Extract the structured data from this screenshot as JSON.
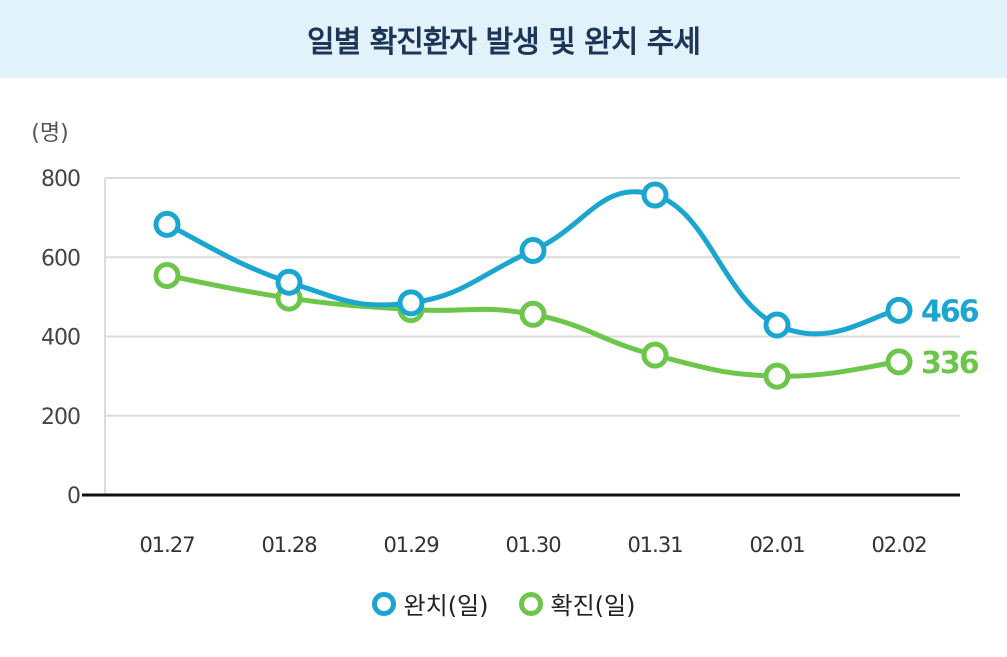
{
  "title": "일별 확진환자 발생 및 완치 추세",
  "colors": {
    "recovered": "#1ba6d1",
    "confirmed": "#6cc64a"
  },
  "chart_data": {
    "type": "line",
    "ylabel": "(명)",
    "ylim": [
      0,
      800
    ],
    "yticks": [
      0,
      200,
      400,
      600,
      800
    ],
    "categories": [
      "01.27",
      "01.28",
      "01.29",
      "01.30",
      "01.31",
      "02.01",
      "02.02"
    ],
    "series": [
      {
        "name": "완치(일)",
        "values": [
          683,
          537,
          485,
          617,
          757,
          429,
          466
        ],
        "end_label": "466"
      },
      {
        "name": "확진(일)",
        "values": [
          554,
          497,
          468,
          456,
          353,
          300,
          336
        ],
        "end_label": "336"
      }
    ],
    "grid": true,
    "legend": "bottom"
  }
}
